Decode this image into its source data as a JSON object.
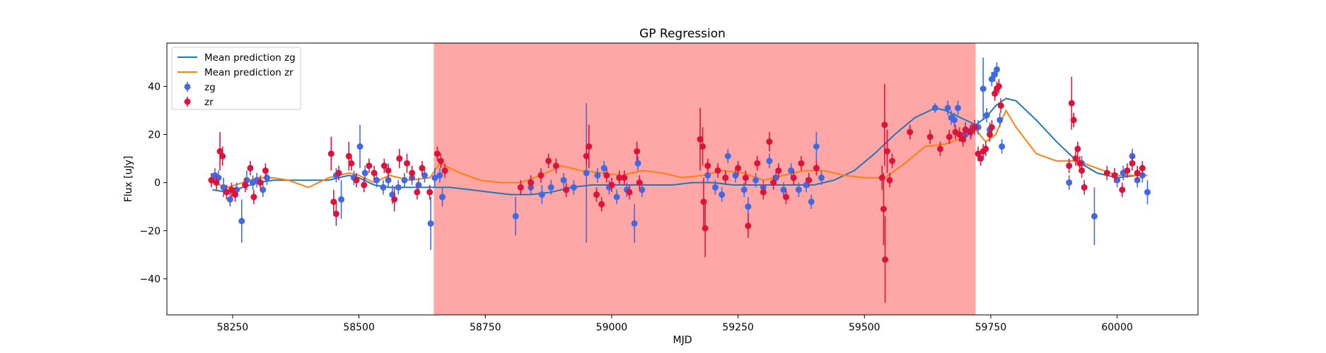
{
  "chart_data": {
    "type": "scatter",
    "title": "GP Regression",
    "xlabel": "MJD",
    "ylabel": "Flux [uJy]",
    "xlim": [
      58120,
      60160
    ],
    "ylim": [
      -55,
      58
    ],
    "xticks": [
      58250,
      58500,
      58750,
      59000,
      59250,
      59500,
      59750,
      60000
    ],
    "yticks": [
      -40,
      -20,
      0,
      20,
      40
    ],
    "highlight_span": {
      "x0": 58648,
      "x1": 59720,
      "color": "#ff0000",
      "opacity": 0.35
    },
    "legend": {
      "placement": "top-left",
      "entries": [
        {
          "label": "Mean prediction zg",
          "kind": "line",
          "color": "#1f77b4"
        },
        {
          "label": "Mean prediction zr",
          "kind": "line",
          "color": "#ff7f0e"
        },
        {
          "label": "zg",
          "kind": "errorbar",
          "color": "#4169e1"
        },
        {
          "label": "zr",
          "kind": "errorbar",
          "color": "#dc143c"
        }
      ]
    },
    "lines": [
      {
        "name": "Mean prediction zg",
        "color": "#1f77b4",
        "x": [
          58210,
          58240,
          58270,
          58300,
          58330,
          58360,
          58400,
          58440,
          58480,
          58500,
          58530,
          58560,
          58600,
          58640,
          58680,
          58720,
          58760,
          58800,
          58840,
          58880,
          58920,
          58960,
          59000,
          59040,
          59080,
          59120,
          59160,
          59200,
          59240,
          59280,
          59320,
          59360,
          59400,
          59440,
          59480,
          59520,
          59560,
          59600,
          59640,
          59660,
          59700,
          59720,
          59740,
          59760,
          59780,
          59800,
          59840,
          59880,
          59920,
          59960,
          60000,
          60040,
          60060
        ],
        "y": [
          -3,
          -4,
          -2,
          0,
          1,
          1,
          1,
          1,
          3,
          2,
          -1,
          -2,
          -2,
          -2,
          -2,
          -3,
          -4,
          -5,
          -5,
          -4,
          -2,
          -1,
          -1,
          -1,
          -1,
          -1,
          0,
          0,
          -1,
          -1,
          -1,
          -1,
          -1,
          1,
          5,
          12,
          20,
          27,
          31,
          30,
          26,
          24,
          27,
          32,
          35,
          34,
          26,
          17,
          9,
          4,
          2,
          3,
          3
        ]
      },
      {
        "name": "Mean prediction zr",
        "color": "#ff7f0e",
        "x": [
          58210,
          58240,
          58270,
          58300,
          58330,
          58360,
          58400,
          58440,
          58480,
          58500,
          58530,
          58560,
          58600,
          58640,
          58660,
          58700,
          58740,
          58780,
          58820,
          58860,
          58900,
          58940,
          58980,
          59020,
          59060,
          59100,
          59140,
          59180,
          59220,
          59260,
          59300,
          59340,
          59380,
          59420,
          59460,
          59500,
          59540,
          59580,
          59620,
          59660,
          59700,
          59720,
          59740,
          59760,
          59780,
          59800,
          59840,
          59880,
          59920,
          59960,
          60000,
          60040,
          60060
        ],
        "y": [
          0,
          -2,
          0,
          2,
          2,
          1,
          -2,
          2,
          4,
          3,
          0,
          3,
          1,
          2,
          8,
          4,
          1,
          0,
          0,
          3,
          7,
          5,
          4,
          3,
          5,
          4,
          2,
          3,
          5,
          4,
          1,
          3,
          5,
          5,
          3,
          2,
          2,
          8,
          15,
          16,
          19,
          22,
          17,
          20,
          30,
          23,
          12,
          9,
          9,
          6,
          3,
          3,
          3
        ]
      }
    ],
    "series": [
      {
        "name": "zg",
        "color": "#4169e1",
        "points": [
          [
            58215,
            3,
            3
          ],
          [
            58222,
            2,
            3
          ],
          [
            58232,
            -2,
            4
          ],
          [
            58245,
            -7,
            3
          ],
          [
            58258,
            -3,
            3
          ],
          [
            58268,
            -16,
            9
          ],
          [
            58278,
            1,
            4
          ],
          [
            58290,
            0,
            3
          ],
          [
            58298,
            1,
            3
          ],
          [
            58310,
            -3,
            3
          ],
          [
            58318,
            2,
            3
          ],
          [
            58455,
            3,
            3
          ],
          [
            58465,
            -7,
            8
          ],
          [
            58490,
            2,
            3
          ],
          [
            58502,
            15,
            9
          ],
          [
            58512,
            4,
            3
          ],
          [
            58535,
            1,
            3
          ],
          [
            58548,
            -2,
            3
          ],
          [
            58558,
            1,
            3
          ],
          [
            58566,
            -5,
            4
          ],
          [
            58578,
            -2,
            3
          ],
          [
            58590,
            1,
            3
          ],
          [
            58605,
            2,
            3
          ],
          [
            58618,
            -1,
            3
          ],
          [
            58630,
            3,
            3
          ],
          [
            58642,
            -17,
            11
          ],
          [
            58650,
            2,
            4
          ],
          [
            58660,
            3,
            3
          ],
          [
            58665,
            -6,
            4
          ],
          [
            58810,
            -14,
            8
          ],
          [
            58840,
            -2,
            3
          ],
          [
            58862,
            -5,
            4
          ],
          [
            58880,
            -2,
            3
          ],
          [
            58905,
            1,
            3
          ],
          [
            58925,
            -2,
            3
          ],
          [
            58950,
            4,
            29
          ],
          [
            58972,
            3,
            3
          ],
          [
            58985,
            6,
            3
          ],
          [
            58995,
            -2,
            3
          ],
          [
            59010,
            -6,
            3
          ],
          [
            59030,
            -3,
            3
          ],
          [
            59045,
            -17,
            8
          ],
          [
            59052,
            8,
            3
          ],
          [
            59060,
            -3,
            3
          ],
          [
            59190,
            3,
            3
          ],
          [
            59205,
            -2,
            3
          ],
          [
            59218,
            -5,
            3
          ],
          [
            59230,
            11,
            3
          ],
          [
            59245,
            3,
            3
          ],
          [
            59262,
            -3,
            3
          ],
          [
            59270,
            -10,
            4
          ],
          [
            59285,
            1,
            3
          ],
          [
            59300,
            -2,
            3
          ],
          [
            59312,
            9,
            3
          ],
          [
            59325,
            2,
            3
          ],
          [
            59340,
            -3,
            3
          ],
          [
            59355,
            5,
            3
          ],
          [
            59370,
            -3,
            3
          ],
          [
            59385,
            -1,
            3
          ],
          [
            59395,
            -8,
            3
          ],
          [
            59405,
            15,
            6
          ],
          [
            59415,
            2,
            3
          ],
          [
            59640,
            31,
            2
          ],
          [
            59665,
            31,
            3
          ],
          [
            59672,
            27,
            3
          ],
          [
            59678,
            26,
            3
          ],
          [
            59685,
            31,
            3
          ],
          [
            59700,
            20,
            3
          ],
          [
            59712,
            22,
            3
          ],
          [
            59725,
            23,
            3
          ],
          [
            59735,
            39,
            13
          ],
          [
            59742,
            28,
            3
          ],
          [
            59748,
            22,
            3
          ],
          [
            59752,
            43,
            3
          ],
          [
            59758,
            45,
            3
          ],
          [
            59762,
            47,
            3
          ],
          [
            59768,
            26,
            3
          ],
          [
            59772,
            15,
            3
          ],
          [
            59905,
            0,
            3
          ],
          [
            59930,
            8,
            3
          ],
          [
            59955,
            -14,
            12
          ],
          [
            60000,
            1,
            3
          ],
          [
            60012,
            4,
            3
          ],
          [
            60030,
            11,
            3
          ],
          [
            60040,
            1,
            3
          ],
          [
            60050,
            3,
            3
          ],
          [
            60060,
            -4,
            5
          ]
        ]
      },
      {
        "name": "zr",
        "color": "#dc143c",
        "points": [
          [
            58208,
            1,
            3
          ],
          [
            58218,
            0,
            3
          ],
          [
            58225,
            13,
            8
          ],
          [
            58230,
            11,
            4
          ],
          [
            58238,
            -4,
            3
          ],
          [
            58248,
            -3,
            3
          ],
          [
            58255,
            -5,
            3
          ],
          [
            58275,
            -1,
            3
          ],
          [
            58285,
            6,
            3
          ],
          [
            58292,
            -6,
            3
          ],
          [
            58305,
            0,
            3
          ],
          [
            58315,
            5,
            3
          ],
          [
            58445,
            12,
            7
          ],
          [
            58450,
            -8,
            5
          ],
          [
            58455,
            -13,
            5
          ],
          [
            58460,
            4,
            3
          ],
          [
            58480,
            11,
            6
          ],
          [
            58485,
            8,
            3
          ],
          [
            58495,
            1,
            3
          ],
          [
            58510,
            -1,
            3
          ],
          [
            58520,
            7,
            3
          ],
          [
            58530,
            4,
            3
          ],
          [
            58550,
            7,
            3
          ],
          [
            58558,
            5,
            3
          ],
          [
            58570,
            -7,
            5
          ],
          [
            58580,
            10,
            4
          ],
          [
            58595,
            8,
            4
          ],
          [
            58605,
            4,
            3
          ],
          [
            58615,
            -4,
            3
          ],
          [
            58625,
            6,
            3
          ],
          [
            58640,
            -4,
            3
          ],
          [
            58655,
            12,
            3
          ],
          [
            58662,
            9,
            3
          ],
          [
            58670,
            5,
            3
          ],
          [
            58820,
            -2,
            3
          ],
          [
            58840,
            0,
            3
          ],
          [
            58860,
            3,
            3
          ],
          [
            58875,
            9,
            3
          ],
          [
            58890,
            7,
            3
          ],
          [
            58910,
            -3,
            3
          ],
          [
            58950,
            11,
            4
          ],
          [
            58955,
            15,
            9
          ],
          [
            58970,
            -5,
            3
          ],
          [
            58980,
            -9,
            3
          ],
          [
            58990,
            3,
            3
          ],
          [
            59000,
            -1,
            3
          ],
          [
            59015,
            2,
            3
          ],
          [
            59025,
            2,
            3
          ],
          [
            59035,
            -4,
            3
          ],
          [
            59050,
            13,
            4
          ],
          [
            59055,
            0,
            3
          ],
          [
            59175,
            18,
            13
          ],
          [
            59180,
            15,
            8
          ],
          [
            59182,
            -8,
            10
          ],
          [
            59185,
            -19,
            12
          ],
          [
            59190,
            7,
            3
          ],
          [
            59210,
            5,
            3
          ],
          [
            59225,
            2,
            3
          ],
          [
            59250,
            6,
            3
          ],
          [
            59265,
            2,
            3
          ],
          [
            59270,
            -18,
            5
          ],
          [
            59288,
            8,
            3
          ],
          [
            59300,
            -4,
            3
          ],
          [
            59312,
            17,
            4
          ],
          [
            59320,
            0,
            3
          ],
          [
            59330,
            5,
            3
          ],
          [
            59345,
            -6,
            3
          ],
          [
            59360,
            2,
            3
          ],
          [
            59375,
            8,
            3
          ],
          [
            59390,
            1,
            3
          ],
          [
            59405,
            6,
            3
          ],
          [
            59535,
            2,
            5
          ],
          [
            59538,
            -11,
            15
          ],
          [
            59540,
            24,
            17
          ],
          [
            59541,
            -32,
            18
          ],
          [
            59545,
            13,
            9
          ],
          [
            59550,
            1,
            3
          ],
          [
            59555,
            9,
            3
          ],
          [
            59590,
            21,
            3
          ],
          [
            59630,
            19,
            3
          ],
          [
            59650,
            14,
            3
          ],
          [
            59668,
            19,
            3
          ],
          [
            59680,
            21,
            3
          ],
          [
            59688,
            20,
            3
          ],
          [
            59695,
            18,
            3
          ],
          [
            59700,
            22,
            3
          ],
          [
            59710,
            21,
            3
          ],
          [
            59718,
            23,
            3
          ],
          [
            59725,
            12,
            3
          ],
          [
            59730,
            10,
            3
          ],
          [
            59735,
            13,
            3
          ],
          [
            59740,
            14,
            3
          ],
          [
            59748,
            20,
            3
          ],
          [
            59752,
            23,
            3
          ],
          [
            59758,
            37,
            3
          ],
          [
            59762,
            39,
            3
          ],
          [
            59766,
            40,
            3
          ],
          [
            59770,
            32,
            3
          ],
          [
            59905,
            7,
            3
          ],
          [
            59910,
            33,
            11
          ],
          [
            59914,
            26,
            3
          ],
          [
            59918,
            10,
            3
          ],
          [
            59922,
            14,
            3
          ],
          [
            59926,
            8,
            3
          ],
          [
            59930,
            5,
            3
          ],
          [
            59935,
            -2,
            3
          ],
          [
            59980,
            4,
            3
          ],
          [
            59995,
            3,
            3
          ],
          [
            60010,
            -3,
            3
          ],
          [
            60020,
            5,
            3
          ],
          [
            60030,
            8,
            3
          ],
          [
            60040,
            4,
            3
          ],
          [
            60050,
            6,
            3
          ]
        ]
      }
    ]
  }
}
